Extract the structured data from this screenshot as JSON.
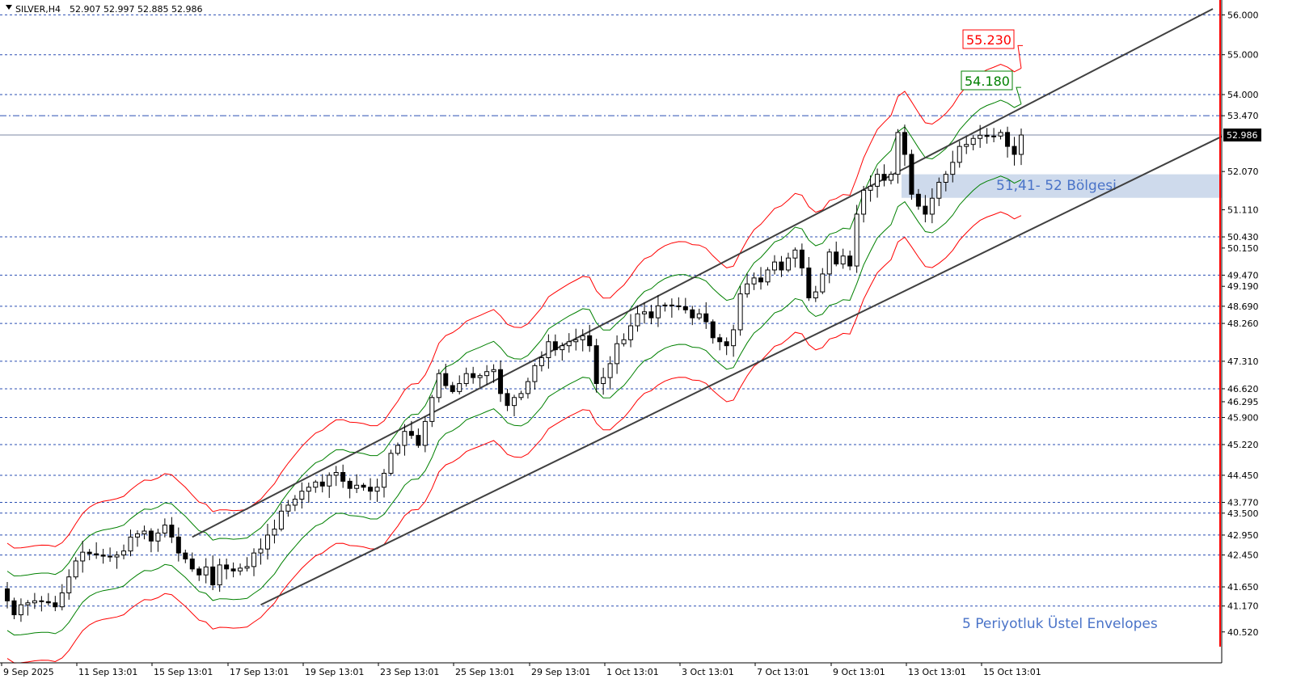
{
  "header": {
    "symbol": "SILVER,H4",
    "ohlc": "52.907 52.997 52.885 52.986"
  },
  "colors": {
    "grid": "#2b4fb3",
    "bull": "#ffffff",
    "bear": "#000000",
    "env_outer": "#ff0000",
    "env_inner": "#008000",
    "channel": "#404040",
    "zone": "#c9d6ea",
    "annot": "#4a73c8",
    "axis_red": "#ff0000"
  },
  "annotations": {
    "zone_label": "51,41- 52 Bölgesi",
    "envelope_label": "5 Periyotluk Üstel Envelopes",
    "target_red": "55.230",
    "target_green": "54.180"
  },
  "chart_data": {
    "type": "candlestick",
    "ylim": [
      40.15,
      56.17
    ],
    "price_levels": [
      "56.000",
      "55.000",
      "54.000",
      "53.470",
      "52.070",
      "51.110",
      "50.430",
      "50.150",
      "49.470",
      "49.190",
      "48.690",
      "48.260",
      "47.310",
      "46.620",
      "46.295",
      "45.900",
      "45.220",
      "44.450",
      "43.770",
      "43.500",
      "42.950",
      "42.450",
      "41.650",
      "41.170",
      "40.520"
    ],
    "dashed_levels": [
      "56.000",
      "55.000",
      "54.000",
      "50.430",
      "49.470",
      "48.690",
      "48.260",
      "47.310",
      "46.620",
      "45.900",
      "45.220",
      "44.450",
      "43.770",
      "43.500",
      "42.950",
      "42.450",
      "41.650",
      "41.170"
    ],
    "dashdot_levels": [
      "53.470"
    ],
    "current_price": "52.986",
    "zone": [
      51.41,
      52.0
    ],
    "channel_upper": [
      [
        42.9,
        56.15
      ]
    ],
    "channel_lower": [
      [
        41.2,
        52.95
      ]
    ],
    "x_labels": [
      "9 Sep 2025",
      "11 Sep 13:01",
      "15 Sep 13:01",
      "17 Sep 13:01",
      "19 Sep 13:01",
      "23 Sep 13:01",
      "25 Sep 13:01",
      "29 Sep 13:01",
      "1 Oct 13:01",
      "3 Oct 13:01",
      "7 Oct 13:01",
      "9 Oct 13:01",
      "13 Oct 13:01",
      "15 Oct 13:01"
    ],
    "closes": [
      41.3,
      40.95,
      41.2,
      41.25,
      41.3,
      41.28,
      41.25,
      41.15,
      41.5,
      41.9,
      42.3,
      42.52,
      42.48,
      42.45,
      42.42,
      42.4,
      42.45,
      42.55,
      42.9,
      42.98,
      43.05,
      42.8,
      43.0,
      43.2,
      42.9,
      42.5,
      42.35,
      42.1,
      41.95,
      42.15,
      41.7,
      42.2,
      42.1,
      42.05,
      42.12,
      42.16,
      42.5,
      42.6,
      42.95,
      43.1,
      43.55,
      43.7,
      43.85,
      44.05,
      44.15,
      44.28,
      44.18,
      44.45,
      44.52,
      44.3,
      44.12,
      44.2,
      44.15,
      44.05,
      44.15,
      44.5,
      45.0,
      45.2,
      45.55,
      45.45,
      45.2,
      45.8,
      46.4,
      47.0,
      46.7,
      46.55,
      46.75,
      47.0,
      46.9,
      46.95,
      47.05,
      47.1,
      46.5,
      46.2,
      46.4,
      46.5,
      46.8,
      47.2,
      47.4,
      47.8,
      47.6,
      47.7,
      47.8,
      47.85,
      47.95,
      47.7,
      46.75,
      46.9,
      47.25,
      47.75,
      47.85,
      48.2,
      48.5,
      48.55,
      48.4,
      48.7,
      48.72,
      48.7,
      48.68,
      48.6,
      48.4,
      48.5,
      48.3,
      47.9,
      47.8,
      47.7,
      48.1,
      49.0,
      49.25,
      49.4,
      49.3,
      49.6,
      49.8,
      49.6,
      49.9,
      50.1,
      49.65,
      48.9,
      49.05,
      49.5,
      50.05,
      49.75,
      49.95,
      49.7,
      51.0,
      51.6,
      51.7,
      52.0,
      51.85,
      52.0,
      53.05,
      52.5,
      51.5,
      51.2,
      51.0,
      51.4,
      51.8,
      52.0,
      52.3,
      52.7,
      52.75,
      52.9,
      52.98,
      52.95,
      52.96,
      53.05,
      52.7,
      52.5,
      52.986
    ]
  }
}
